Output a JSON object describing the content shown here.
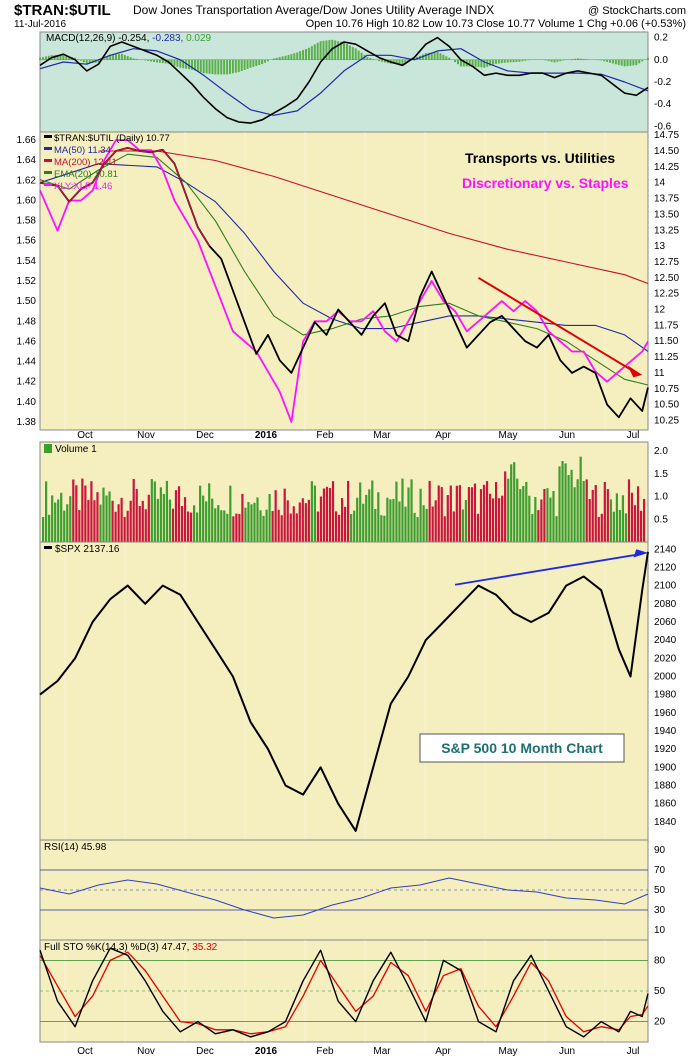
{
  "header": {
    "symbol": "$TRAN:$UTIL",
    "description": "Dow Jones Transportation Average/Dow Jones Utility Average INDX",
    "date": "11-Jul-2016",
    "ohlc": "Open 10.76  High 10.82  Low 10.73  Close 10.77  Volume 1  Chg +0.06 (+0.53%)",
    "watermark": "@ StockCharts.com"
  },
  "colors": {
    "up": "#3d9d2f",
    "down": "#c8163c",
    "ma50": "#1f2aa6",
    "ma200": "#c8102e",
    "ema20": "#2e7d1f",
    "xlyxlp": "#ff10ff",
    "macd_signal": "#1f2aa6",
    "panel_bg": "#f5eebe",
    "macd_bg": "#c8e6da"
  },
  "x_axis_months": [
    "Oct",
    "Nov",
    "Dec",
    "2016",
    "Feb",
    "Mar",
    "Apr",
    "May",
    "Jun",
    "Jul"
  ],
  "chart_data": [
    {
      "type": "line",
      "panel": "macd",
      "label": "MACD(12,26,9) -0.254, -0.283, 0.029",
      "label_parts": {
        "name": "MACD(12,26,9)",
        "macd": "-0.254,",
        "signal": "-0.283,",
        "hist": "0.029"
      },
      "yticks": [
        0.2,
        0.0,
        -0.2,
        -0.4,
        -0.6
      ],
      "ylim": [
        -0.65,
        0.25
      ],
      "series": [
        {
          "role": "macd",
          "x": [
            0,
            4,
            8,
            12,
            16,
            20,
            24,
            28,
            32,
            36,
            40,
            44,
            48,
            52,
            56,
            60,
            64,
            68,
            72,
            76,
            80,
            84,
            88,
            92,
            96,
            100,
            104,
            108,
            112,
            116,
            120,
            124,
            128,
            132,
            136,
            140,
            144,
            148,
            152,
            156,
            160,
            164,
            168,
            172,
            176,
            180,
            184,
            188,
            192,
            196,
            200,
            204,
            208
          ],
          "values": [
            -0.05,
            0.02,
            0.05,
            0.0,
            -0.1,
            -0.04,
            0.12,
            0.16,
            0.12,
            0.08,
            0.04,
            -0.02,
            -0.12,
            -0.22,
            -0.34,
            -0.44,
            -0.52,
            -0.56,
            -0.57,
            -0.54,
            -0.48,
            -0.42,
            -0.35,
            -0.2,
            -0.02,
            0.1,
            0.16,
            0.14,
            0.08,
            0.02,
            -0.02,
            -0.05,
            0.02,
            0.14,
            0.2,
            0.12,
            0.0,
            -0.06,
            -0.14,
            -0.12,
            -0.14,
            -0.14,
            -0.12,
            -0.12,
            -0.16,
            -0.12,
            -0.1,
            -0.12,
            -0.14,
            -0.22,
            -0.3,
            -0.32,
            -0.25
          ]
        },
        {
          "role": "signal",
          "x": [
            0,
            8,
            16,
            24,
            32,
            40,
            48,
            56,
            64,
            72,
            80,
            88,
            96,
            104,
            112,
            120,
            128,
            136,
            144,
            152,
            160,
            168,
            176,
            184,
            192,
            200,
            208
          ],
          "values": [
            -0.08,
            -0.02,
            -0.04,
            0.04,
            0.1,
            0.08,
            0.0,
            -0.14,
            -0.3,
            -0.45,
            -0.5,
            -0.46,
            -0.3,
            -0.1,
            0.04,
            0.04,
            0.0,
            0.08,
            0.1,
            -0.02,
            -0.1,
            -0.12,
            -0.12,
            -0.12,
            -0.13,
            -0.2,
            -0.28
          ]
        }
      ]
    },
    {
      "type": "line",
      "panel": "price",
      "title_left": "Transports vs. Utilities",
      "title_right": "Discretionary vs. Staples",
      "legend": [
        "$TRAN:$UTIL (Daily) 10.77",
        "MA(50) 11.34",
        "MA(200) 12.41",
        "EMA(20) 10.81",
        "XLY:XLP 1.46"
      ],
      "left_yticks": [
        1.66,
        1.64,
        1.62,
        1.6,
        1.58,
        1.56,
        1.54,
        1.52,
        1.5,
        1.48,
        1.46,
        1.44,
        1.42,
        1.4,
        1.38
      ],
      "right_yticks": [
        14.75,
        14.5,
        14.25,
        14.0,
        13.75,
        13.5,
        13.25,
        13.0,
        12.75,
        12.5,
        12.25,
        12.0,
        11.75,
        11.5,
        11.25,
        11.0,
        10.75,
        10.5,
        10.25
      ],
      "ylim_right": [
        10.1,
        14.8
      ],
      "ylim_left": [
        1.372,
        1.668
      ],
      "series": [
        {
          "name": "$TRAN:$UTIL",
          "axis": "right",
          "x": [
            0,
            6,
            10,
            14,
            18,
            22,
            26,
            30,
            34,
            38,
            42,
            46,
            50,
            54,
            58,
            62,
            66,
            70,
            74,
            78,
            82,
            86,
            90,
            94,
            98,
            102,
            106,
            110,
            114,
            118,
            122,
            126,
            130,
            134,
            138,
            142,
            146,
            150,
            154,
            158,
            162,
            166,
            170,
            174,
            178,
            182,
            186,
            190,
            194,
            198,
            202,
            206,
            208
          ],
          "values": [
            14.0,
            13.95,
            13.7,
            13.9,
            14.0,
            14.3,
            14.5,
            14.55,
            14.5,
            14.48,
            14.52,
            14.3,
            13.8,
            13.3,
            13.0,
            12.8,
            12.3,
            11.8,
            11.3,
            11.6,
            11.2,
            11.0,
            11.4,
            11.8,
            11.6,
            12.0,
            11.8,
            11.6,
            11.9,
            12.1,
            11.6,
            11.5,
            12.2,
            12.6,
            12.2,
            11.8,
            11.4,
            11.6,
            11.8,
            11.9,
            11.7,
            11.5,
            11.4,
            11.6,
            11.2,
            11.0,
            11.1,
            11.0,
            10.5,
            10.3,
            10.6,
            10.4,
            10.77
          ]
        },
        {
          "name": "MA(50)",
          "axis": "right",
          "x": [
            0,
            20,
            40,
            50,
            60,
            70,
            80,
            90,
            100,
            110,
            120,
            130,
            140,
            150,
            160,
            170,
            180,
            190,
            200,
            208
          ],
          "values": [
            14.0,
            14.3,
            14.25,
            14.0,
            13.7,
            13.2,
            12.6,
            12.1,
            11.85,
            11.7,
            11.7,
            11.8,
            11.9,
            11.9,
            11.85,
            11.8,
            11.75,
            11.75,
            11.6,
            11.34
          ]
        },
        {
          "name": "MA(200)",
          "axis": "right",
          "x": [
            20,
            40,
            60,
            80,
            100,
            120,
            140,
            160,
            180,
            200,
            208
          ],
          "values": [
            14.5,
            14.5,
            14.35,
            14.1,
            13.8,
            13.5,
            13.2,
            12.95,
            12.75,
            12.55,
            12.41
          ]
        },
        {
          "name": "EMA(20)",
          "axis": "right",
          "x": [
            0,
            10,
            20,
            30,
            40,
            50,
            60,
            70,
            80,
            90,
            100,
            110,
            120,
            130,
            140,
            150,
            160,
            170,
            180,
            190,
            200,
            208
          ],
          "values": [
            14.05,
            13.9,
            14.2,
            14.45,
            14.4,
            14.0,
            13.4,
            12.6,
            11.9,
            11.6,
            11.7,
            11.85,
            11.9,
            12.05,
            12.1,
            11.9,
            11.8,
            11.7,
            11.5,
            11.2,
            10.9,
            10.81
          ]
        },
        {
          "name": "XLY:XLP",
          "axis": "left",
          "x": [
            0,
            6,
            10,
            14,
            18,
            22,
            26,
            30,
            34,
            38,
            42,
            46,
            50,
            54,
            58,
            62,
            66,
            70,
            74,
            78,
            82,
            86,
            90,
            94,
            98,
            102,
            106,
            110,
            114,
            118,
            122,
            126,
            130,
            134,
            138,
            142,
            146,
            150,
            154,
            158,
            162,
            166,
            170,
            174,
            178,
            182,
            186,
            190,
            194,
            198,
            202,
            206,
            208
          ],
          "values": [
            1.61,
            1.57,
            1.6,
            1.6,
            1.61,
            1.64,
            1.66,
            1.66,
            1.65,
            1.65,
            1.63,
            1.6,
            1.58,
            1.56,
            1.53,
            1.5,
            1.47,
            1.46,
            1.45,
            1.43,
            1.41,
            1.38,
            1.46,
            1.48,
            1.48,
            1.49,
            1.48,
            1.48,
            1.49,
            1.47,
            1.46,
            1.48,
            1.5,
            1.52,
            1.5,
            1.49,
            1.47,
            1.48,
            1.49,
            1.5,
            1.49,
            1.5,
            1.49,
            1.47,
            1.46,
            1.45,
            1.45,
            1.43,
            1.42,
            1.43,
            1.44,
            1.45,
            1.46
          ]
        }
      ]
    },
    {
      "type": "bar",
      "panel": "volume",
      "label": "Volume 1",
      "yticks": [
        2.0,
        1.5,
        1.0,
        0.5
      ],
      "ylim": [
        0,
        2.2
      ],
      "bars": 200,
      "typical_value": 1.0
    },
    {
      "type": "line",
      "panel": "spx",
      "label": "$SPX 2137.16",
      "annotation": "S&P 500 10 Month Chart",
      "yticks": [
        2140,
        2120,
        2100,
        2080,
        2060,
        2040,
        2020,
        2000,
        1980,
        1960,
        1940,
        1920,
        1900,
        1880,
        1860,
        1840
      ],
      "ylim": [
        1820,
        2148
      ],
      "x": [
        0,
        6,
        12,
        18,
        24,
        30,
        36,
        42,
        48,
        54,
        60,
        66,
        72,
        78,
        84,
        90,
        96,
        102,
        108,
        114,
        120,
        126,
        132,
        138,
        144,
        150,
        156,
        162,
        168,
        174,
        180,
        186,
        192,
        198,
        202,
        206,
        208
      ],
      "values": [
        1980,
        1995,
        2020,
        2060,
        2085,
        2100,
        2080,
        2100,
        2090,
        2060,
        2030,
        2000,
        1950,
        1920,
        1880,
        1870,
        1900,
        1860,
        1830,
        1900,
        1970,
        2000,
        2040,
        2060,
        2080,
        2100,
        2090,
        2070,
        2060,
        2070,
        2100,
        2110,
        2095,
        2030,
        2000,
        2095,
        2137.16
      ]
    },
    {
      "type": "line",
      "panel": "rsi",
      "label": "RSI(14) 45.98",
      "yticks": [
        90,
        70,
        50,
        30,
        10
      ],
      "ylim": [
        0,
        100
      ],
      "x": [
        0,
        10,
        20,
        30,
        40,
        50,
        60,
        70,
        80,
        90,
        100,
        110,
        120,
        130,
        140,
        150,
        160,
        170,
        180,
        190,
        200,
        208
      ],
      "values": [
        52,
        46,
        55,
        60,
        56,
        48,
        40,
        30,
        22,
        25,
        35,
        42,
        52,
        55,
        62,
        56,
        50,
        48,
        42,
        40,
        36,
        45.98
      ]
    },
    {
      "type": "line",
      "panel": "sto",
      "label": "Full STO %K(14,3) %D(3) 47.47, 35.32",
      "label_parts": {
        "name": "Full STO %K(14,3) %D(3)",
        "k": "47.47,",
        "d": "35.32"
      },
      "yticks": [
        80,
        50,
        20
      ],
      "ylim": [
        0,
        100
      ],
      "series": [
        {
          "name": "%K",
          "x": [
            0,
            6,
            12,
            18,
            24,
            30,
            36,
            42,
            48,
            54,
            60,
            66,
            72,
            78,
            84,
            90,
            96,
            102,
            108,
            114,
            120,
            126,
            132,
            138,
            144,
            150,
            156,
            162,
            168,
            174,
            180,
            186,
            192,
            198,
            202,
            206,
            208
          ],
          "values": [
            90,
            40,
            15,
            60,
            92,
            85,
            60,
            30,
            10,
            20,
            8,
            12,
            5,
            10,
            20,
            60,
            90,
            40,
            20,
            60,
            88,
            55,
            20,
            80,
            70,
            20,
            10,
            60,
            85,
            50,
            15,
            5,
            20,
            10,
            30,
            25,
            47.47
          ]
        },
        {
          "name": "%D",
          "x": [
            0,
            6,
            12,
            18,
            24,
            30,
            36,
            42,
            48,
            54,
            60,
            66,
            72,
            78,
            84,
            90,
            96,
            102,
            108,
            114,
            120,
            126,
            132,
            138,
            144,
            150,
            156,
            162,
            168,
            174,
            180,
            186,
            192,
            198,
            202,
            206,
            208
          ],
          "values": [
            85,
            55,
            25,
            45,
            80,
            88,
            70,
            45,
            20,
            18,
            12,
            12,
            8,
            10,
            15,
            45,
            80,
            55,
            30,
            45,
            78,
            65,
            30,
            65,
            72,
            35,
            15,
            45,
            78,
            60,
            25,
            10,
            15,
            12,
            25,
            27,
            35.32
          ]
        }
      ]
    }
  ]
}
